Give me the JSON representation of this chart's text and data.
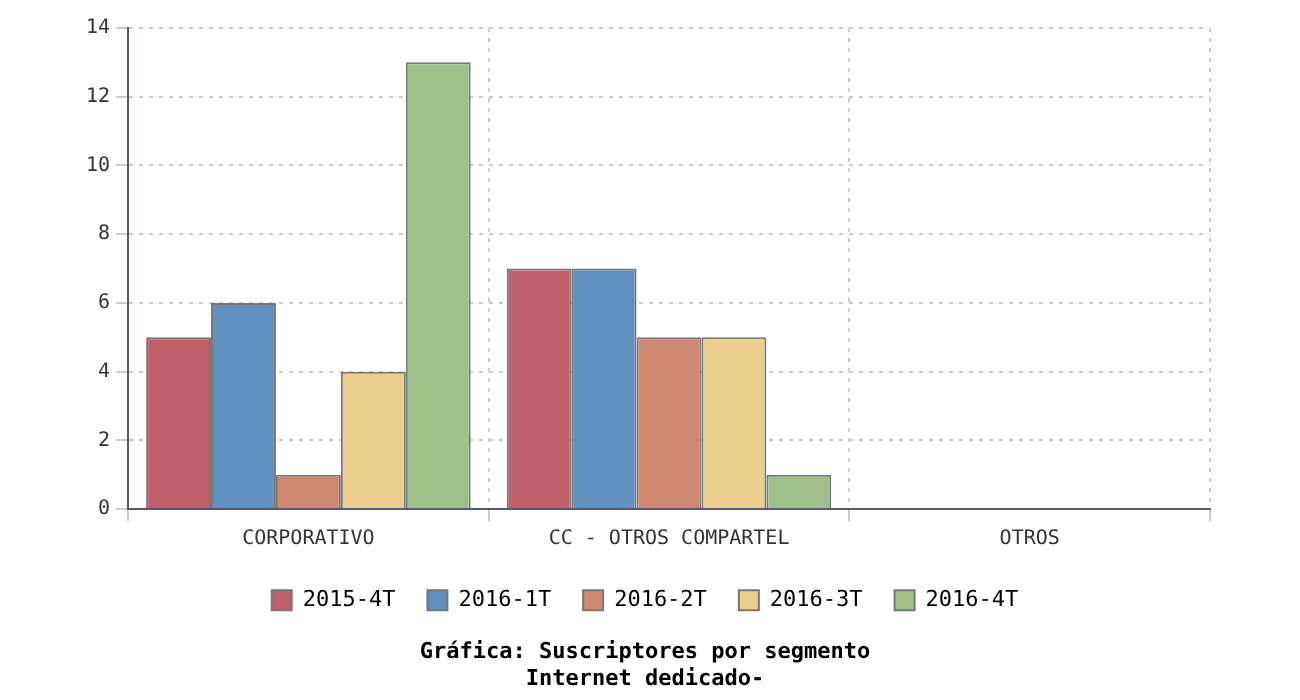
{
  "chart_data": {
    "type": "bar",
    "title": "Gráfica: Suscriptores por segmento\nInternet dedicado-",
    "categories": [
      "CORPORATIVO",
      "CC - OTROS COMPARTEL",
      "OTROS"
    ],
    "series": [
      {
        "name": "2015-4T",
        "color": "#c0606a",
        "values": [
          5,
          7,
          0
        ]
      },
      {
        "name": "2016-1T",
        "color": "#6090c0",
        "values": [
          6,
          7,
          0
        ]
      },
      {
        "name": "2016-2T",
        "color": "#d08870",
        "values": [
          1,
          5,
          0
        ]
      },
      {
        "name": "2016-3T",
        "color": "#ecce8e",
        "values": [
          4,
          5,
          0
        ]
      },
      {
        "name": "2016-4T",
        "color": "#a0c08a",
        "values": [
          13,
          1,
          0
        ]
      }
    ],
    "ylim": [
      0,
      14
    ],
    "yticks": [
      0,
      2,
      4,
      6,
      8,
      10,
      12,
      14
    ],
    "grid": true,
    "legend": "bottom"
  }
}
